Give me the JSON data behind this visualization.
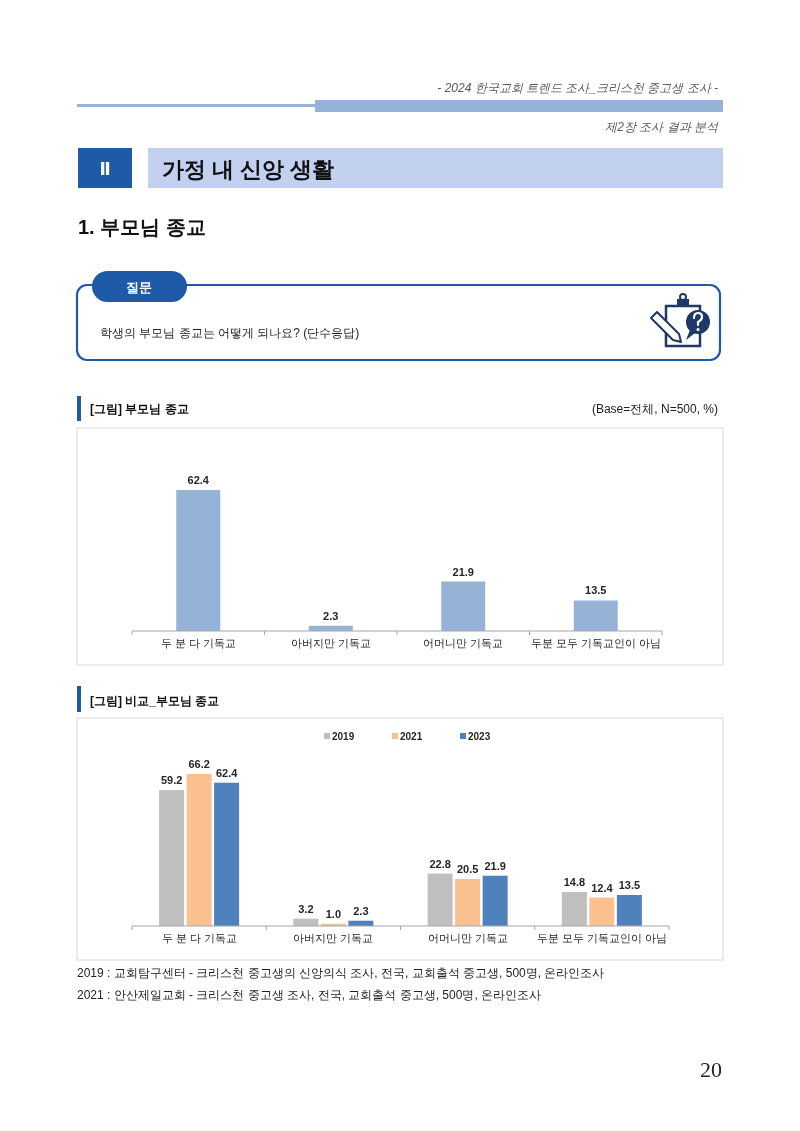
{
  "chart_data": [
    {
      "type": "bar",
      "title": "[그림] 부모님 종교",
      "subtitle": "(Base=전체, N=500, %)",
      "categories": [
        "두 분 다 기독교",
        "아버지만 기독교",
        "어머니만 기독교",
        "두분 모두 기독교인이 아님"
      ],
      "values": [
        62.4,
        2.3,
        21.9,
        13.5
      ],
      "color": "#95b3d7",
      "data_labels": true,
      "annotations": [
        "- 2024 한국교회 트렌드 조사_크리스천 중고생 조사 -",
        "제2장 조사 결과 분석",
        "Ⅱ",
        "가정 내 신앙 생활",
        "1. 부모님 종교",
        "질문",
        "학생의 부모님 종교는 어떻게 되나요? (단수응답)",
        "20"
      ]
    },
    {
      "type": "bar",
      "title": "[그림] 비교_부모님 종교",
      "categories": [
        "두 분 다 기독교",
        "아버지만 기독교",
        "어머니만 기독교",
        "두분 모두 기독교인이 아님"
      ],
      "series": [
        {
          "name": "2019",
          "color": "#bfbfbf",
          "values": [
            59.2,
            3.2,
            22.8,
            14.8
          ],
          "value_labels": [
            "59.2",
            "3.2",
            "22.8",
            "14.8"
          ]
        },
        {
          "name": "2021",
          "color": "#fac090",
          "values": [
            66.2,
            1.0,
            20.5,
            12.4
          ],
          "value_labels": [
            "66.2",
            "1.0",
            "20.5",
            "12.4"
          ]
        },
        {
          "name": "2023",
          "color": "#4f81bd",
          "values": [
            62.4,
            2.3,
            21.9,
            13.5
          ],
          "value_labels": [
            "62.4",
            "2.3",
            "21.9",
            "13.5"
          ]
        }
      ],
      "legend": "top",
      "annotations": [
        "2019 : 교회탐구센터 - 크리스천 중고생의 신앙의식 조사, 전국, 교회출석 중고생, 500명, 온라인조사",
        "2021 : 안산제일교회 - 크리스천 중고생 조사, 전국, 교회출석 중고생, 500명, 온라인조사"
      ]
    }
  ]
}
